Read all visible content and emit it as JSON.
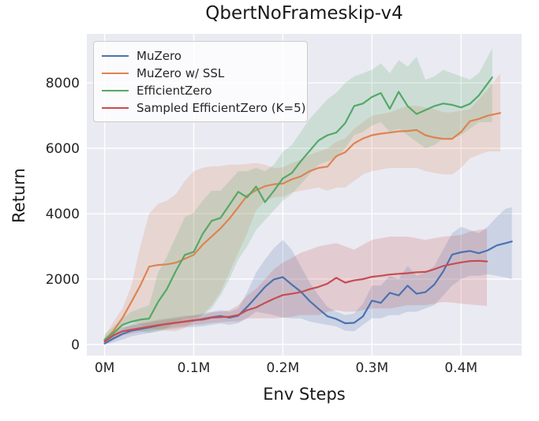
{
  "title": "QbertNoFrameskip-v4",
  "chart_data": {
    "type": "line",
    "title": "QbertNoFrameskip-v4",
    "xlabel": "Env Steps",
    "ylabel": "Return",
    "x_unit": "million env steps",
    "xlim": [
      -0.02,
      0.468
    ],
    "ylim": [
      -340,
      9500
    ],
    "grid": true,
    "plot_bg": "#eaeaf2",
    "grid_color": "#ffffff",
    "legend_position": "upper-left",
    "xticks": {
      "values": [
        0,
        0.1,
        0.2,
        0.3,
        0.4
      ],
      "labels": [
        "0M",
        "0.1M",
        "0.2M",
        "0.3M",
        "0.4M"
      ]
    },
    "yticks": {
      "values": [
        0,
        2000,
        4000,
        6000,
        8000
      ],
      "labels": [
        "0",
        "2000",
        "4000",
        "6000",
        "8000"
      ]
    },
    "series": [
      {
        "name": "MuZero",
        "color": "#4c72b0",
        "band_alpha": 0.2,
        "x": [
          0,
          0.01,
          0.02,
          0.03,
          0.04,
          0.05,
          0.06,
          0.07,
          0.08,
          0.09,
          0.1,
          0.11,
          0.12,
          0.13,
          0.14,
          0.15,
          0.16,
          0.17,
          0.18,
          0.19,
          0.2,
          0.21,
          0.22,
          0.23,
          0.24,
          0.25,
          0.26,
          0.27,
          0.28,
          0.29,
          0.3,
          0.31,
          0.32,
          0.33,
          0.34,
          0.35,
          0.36,
          0.37,
          0.38,
          0.39,
          0.4,
          0.41,
          0.42,
          0.43,
          0.44,
          0.45,
          0.457
        ],
        "mean": [
          30,
          180,
          320,
          420,
          470,
          520,
          580,
          630,
          660,
          700,
          730,
          780,
          830,
          870,
          820,
          880,
          1150,
          1450,
          1760,
          1990,
          2060,
          1830,
          1620,
          1330,
          1090,
          860,
          780,
          650,
          660,
          860,
          1340,
          1270,
          1580,
          1500,
          1800,
          1550,
          1600,
          1830,
          2230,
          2750,
          2820,
          2860,
          2790,
          2880,
          3030,
          3100,
          3150
        ],
        "lo": [
          0,
          60,
          150,
          250,
          300,
          350,
          400,
          450,
          480,
          520,
          530,
          560,
          600,
          640,
          600,
          650,
          800,
          1000,
          950,
          900,
          820,
          800,
          800,
          700,
          650,
          600,
          550,
          420,
          400,
          600,
          800,
          800,
          900,
          900,
          1000,
          1000,
          1100,
          1200,
          1500,
          1800,
          2000,
          2100,
          2100,
          2150,
          2100,
          2050,
          2000
        ],
        "hi": [
          80,
          300,
          480,
          600,
          650,
          700,
          760,
          800,
          840,
          880,
          900,
          950,
          1000,
          1050,
          1000,
          1100,
          1600,
          2200,
          2600,
          2950,
          3200,
          2900,
          2400,
          1900,
          1500,
          1150,
          1000,
          900,
          950,
          1250,
          1800,
          1800,
          2100,
          2000,
          2400,
          2100,
          2200,
          2400,
          2900,
          3400,
          3600,
          3500,
          3400,
          3600,
          3900,
          4150,
          4200
        ]
      },
      {
        "name": "MuZero w/ SSL",
        "color": "#dd8452",
        "band_alpha": 0.2,
        "x": [
          0,
          0.01,
          0.02,
          0.03,
          0.04,
          0.05,
          0.06,
          0.07,
          0.08,
          0.09,
          0.1,
          0.11,
          0.12,
          0.13,
          0.14,
          0.15,
          0.16,
          0.17,
          0.18,
          0.19,
          0.2,
          0.21,
          0.22,
          0.23,
          0.24,
          0.25,
          0.26,
          0.27,
          0.28,
          0.29,
          0.3,
          0.31,
          0.32,
          0.33,
          0.34,
          0.35,
          0.36,
          0.37,
          0.38,
          0.39,
          0.4,
          0.41,
          0.42,
          0.43,
          0.444
        ],
        "mean": [
          120,
          420,
          810,
          1300,
          1800,
          2380,
          2430,
          2450,
          2500,
          2620,
          2740,
          3050,
          3300,
          3550,
          3850,
          4200,
          4550,
          4720,
          4840,
          4900,
          4920,
          5050,
          5140,
          5300,
          5400,
          5440,
          5760,
          5880,
          6150,
          6300,
          6400,
          6450,
          6480,
          6520,
          6530,
          6560,
          6400,
          6330,
          6290,
          6290,
          6500,
          6830,
          6900,
          7000,
          7080
        ],
        "lo": [
          20,
          200,
          600,
          700,
          600,
          500,
          450,
          420,
          400,
          500,
          700,
          900,
          1200,
          1600,
          2200,
          2800,
          3400,
          4100,
          4400,
          4500,
          4520,
          4650,
          4700,
          4750,
          4800,
          4700,
          4800,
          4800,
          5000,
          5200,
          5300,
          5350,
          5400,
          5400,
          5400,
          5400,
          5300,
          5250,
          5200,
          5200,
          5400,
          5700,
          5800,
          5900,
          5910
        ],
        "hi": [
          250,
          700,
          1100,
          1800,
          3000,
          4000,
          4300,
          4400,
          4600,
          5000,
          5300,
          5400,
          5450,
          5450,
          5500,
          5500,
          5520,
          5550,
          5500,
          5400,
          5420,
          5550,
          5650,
          5800,
          5900,
          6000,
          6200,
          6300,
          6600,
          6800,
          7000,
          7050,
          7100,
          7200,
          7300,
          7300,
          7250,
          7200,
          7100,
          7100,
          7150,
          7200,
          7500,
          7800,
          8290
        ]
      },
      {
        "name": "EfficientZero",
        "color": "#55a868",
        "band_alpha": 0.2,
        "x": [
          0,
          0.01,
          0.02,
          0.03,
          0.04,
          0.05,
          0.06,
          0.07,
          0.08,
          0.09,
          0.1,
          0.11,
          0.12,
          0.13,
          0.14,
          0.15,
          0.16,
          0.17,
          0.18,
          0.19,
          0.2,
          0.21,
          0.22,
          0.23,
          0.24,
          0.25,
          0.26,
          0.27,
          0.28,
          0.29,
          0.3,
          0.31,
          0.32,
          0.33,
          0.34,
          0.35,
          0.36,
          0.37,
          0.38,
          0.39,
          0.4,
          0.41,
          0.42,
          0.435
        ],
        "mean": [
          150,
          350,
          600,
          700,
          760,
          790,
          1300,
          1700,
          2250,
          2740,
          2830,
          3380,
          3780,
          3870,
          4270,
          4670,
          4500,
          4830,
          4350,
          4700,
          5080,
          5240,
          5600,
          5920,
          6240,
          6400,
          6480,
          6770,
          7290,
          7370,
          7570,
          7690,
          7210,
          7730,
          7290,
          7050,
          7170,
          7290,
          7370,
          7330,
          7250,
          7360,
          7620,
          8170
        ],
        "lo": [
          50,
          200,
          400,
          450,
          400,
          350,
          400,
          500,
          700,
          800,
          810,
          900,
          1100,
          1500,
          2000,
          2600,
          3000,
          3500,
          3800,
          4100,
          4400,
          4600,
          4900,
          5200,
          5500,
          5600,
          5700,
          6000,
          6400,
          6500,
          6700,
          6800,
          6500,
          6600,
          6400,
          6200,
          6000,
          6100,
          6300,
          6300,
          6400,
          6600,
          6800,
          6800
        ],
        "hi": [
          300,
          550,
          800,
          1000,
          1100,
          1200,
          2200,
          2700,
          3300,
          3900,
          4030,
          4400,
          4700,
          4700,
          5000,
          5300,
          5300,
          5400,
          5300,
          5500,
          5900,
          6100,
          6500,
          6900,
          7200,
          7500,
          7700,
          8000,
          8200,
          8300,
          8400,
          8600,
          8300,
          8700,
          8500,
          8800,
          8100,
          8200,
          8400,
          8300,
          8200,
          8100,
          8300,
          9050
        ]
      },
      {
        "name": "Sampled EfficientZero (K=5)",
        "color": "#c44e52",
        "band_alpha": 0.2,
        "x": [
          0,
          0.01,
          0.02,
          0.03,
          0.04,
          0.05,
          0.06,
          0.07,
          0.08,
          0.09,
          0.1,
          0.11,
          0.12,
          0.13,
          0.14,
          0.15,
          0.16,
          0.17,
          0.18,
          0.19,
          0.2,
          0.21,
          0.22,
          0.23,
          0.24,
          0.25,
          0.26,
          0.27,
          0.28,
          0.29,
          0.3,
          0.31,
          0.32,
          0.33,
          0.34,
          0.35,
          0.36,
          0.37,
          0.38,
          0.39,
          0.4,
          0.41,
          0.42,
          0.429
        ],
        "mean": [
          90,
          280,
          400,
          450,
          500,
          545,
          590,
          625,
          665,
          700,
          740,
          760,
          820,
          835,
          850,
          900,
          1050,
          1130,
          1270,
          1400,
          1510,
          1550,
          1600,
          1690,
          1760,
          1860,
          2040,
          1890,
          1960,
          2000,
          2070,
          2100,
          2140,
          2160,
          2180,
          2210,
          2220,
          2300,
          2400,
          2460,
          2510,
          2550,
          2560,
          2540
        ],
        "lo": [
          0,
          150,
          280,
          330,
          380,
          420,
          460,
          500,
          530,
          560,
          600,
          620,
          660,
          680,
          700,
          700,
          800,
          800,
          800,
          800,
          820,
          850,
          900,
          900,
          900,
          1000,
          1050,
          1000,
          1000,
          1050,
          1100,
          1100,
          1100,
          1150,
          1200,
          1200,
          1200,
          1250,
          1300,
          1280,
          1250,
          1220,
          1200,
          1175
        ],
        "hi": [
          200,
          420,
          530,
          580,
          630,
          670,
          720,
          760,
          800,
          840,
          880,
          900,
          980,
          1000,
          1050,
          1200,
          1500,
          1700,
          2000,
          2300,
          2500,
          2650,
          2800,
          2900,
          3000,
          3050,
          3100,
          3000,
          2900,
          3050,
          3200,
          3250,
          3300,
          3300,
          3300,
          3250,
          3200,
          3250,
          3300,
          3320,
          3350,
          3450,
          3500,
          3540
        ]
      }
    ]
  }
}
